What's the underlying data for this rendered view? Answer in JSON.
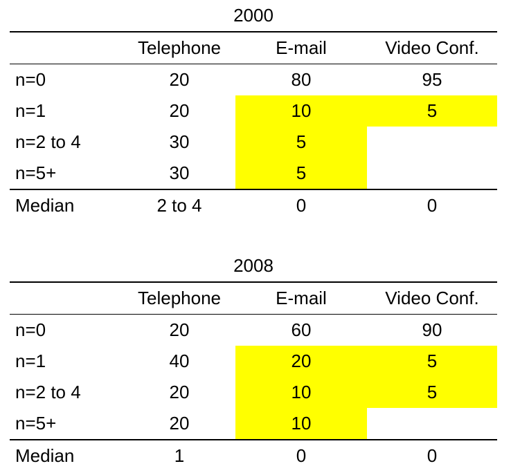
{
  "highlight_color": "#ffff00",
  "tables": [
    {
      "year": "2000",
      "columns": [
        "",
        "Telephone",
        "E-mail",
        "Video Conf."
      ],
      "rows": [
        {
          "label": "n=0",
          "telephone": "20",
          "email": "80",
          "video": "95",
          "email_highlight": false,
          "video_highlight": false
        },
        {
          "label": "n=1",
          "telephone": "20",
          "email": "10",
          "video": "5",
          "email_highlight": true,
          "video_highlight": true
        },
        {
          "label": "n=2 to 4",
          "telephone": "30",
          "email": "5",
          "video": "",
          "email_highlight": true,
          "video_highlight": false
        },
        {
          "label": "n=5+",
          "telephone": "30",
          "email": "5",
          "video": "",
          "email_highlight": true,
          "video_highlight": false
        },
        {
          "label": "Median",
          "telephone": "2 to 4",
          "email": "0",
          "video": "0",
          "email_highlight": false,
          "video_highlight": false
        }
      ]
    },
    {
      "year": "2008",
      "columns": [
        "",
        "Telephone",
        "E-mail",
        "Video Conf."
      ],
      "rows": [
        {
          "label": "n=0",
          "telephone": "20",
          "email": "60",
          "video": "90",
          "email_highlight": false,
          "video_highlight": false
        },
        {
          "label": "n=1",
          "telephone": "40",
          "email": "20",
          "video": "5",
          "email_highlight": true,
          "video_highlight": true
        },
        {
          "label": "n=2 to 4",
          "telephone": "20",
          "email": "10",
          "video": "5",
          "email_highlight": true,
          "video_highlight": true
        },
        {
          "label": "n=5+",
          "telephone": "20",
          "email": "10",
          "video": "",
          "email_highlight": true,
          "video_highlight": false
        },
        {
          "label": "Median",
          "telephone": "1",
          "email": "0",
          "video": "0",
          "email_highlight": false,
          "video_highlight": false
        }
      ]
    }
  ]
}
